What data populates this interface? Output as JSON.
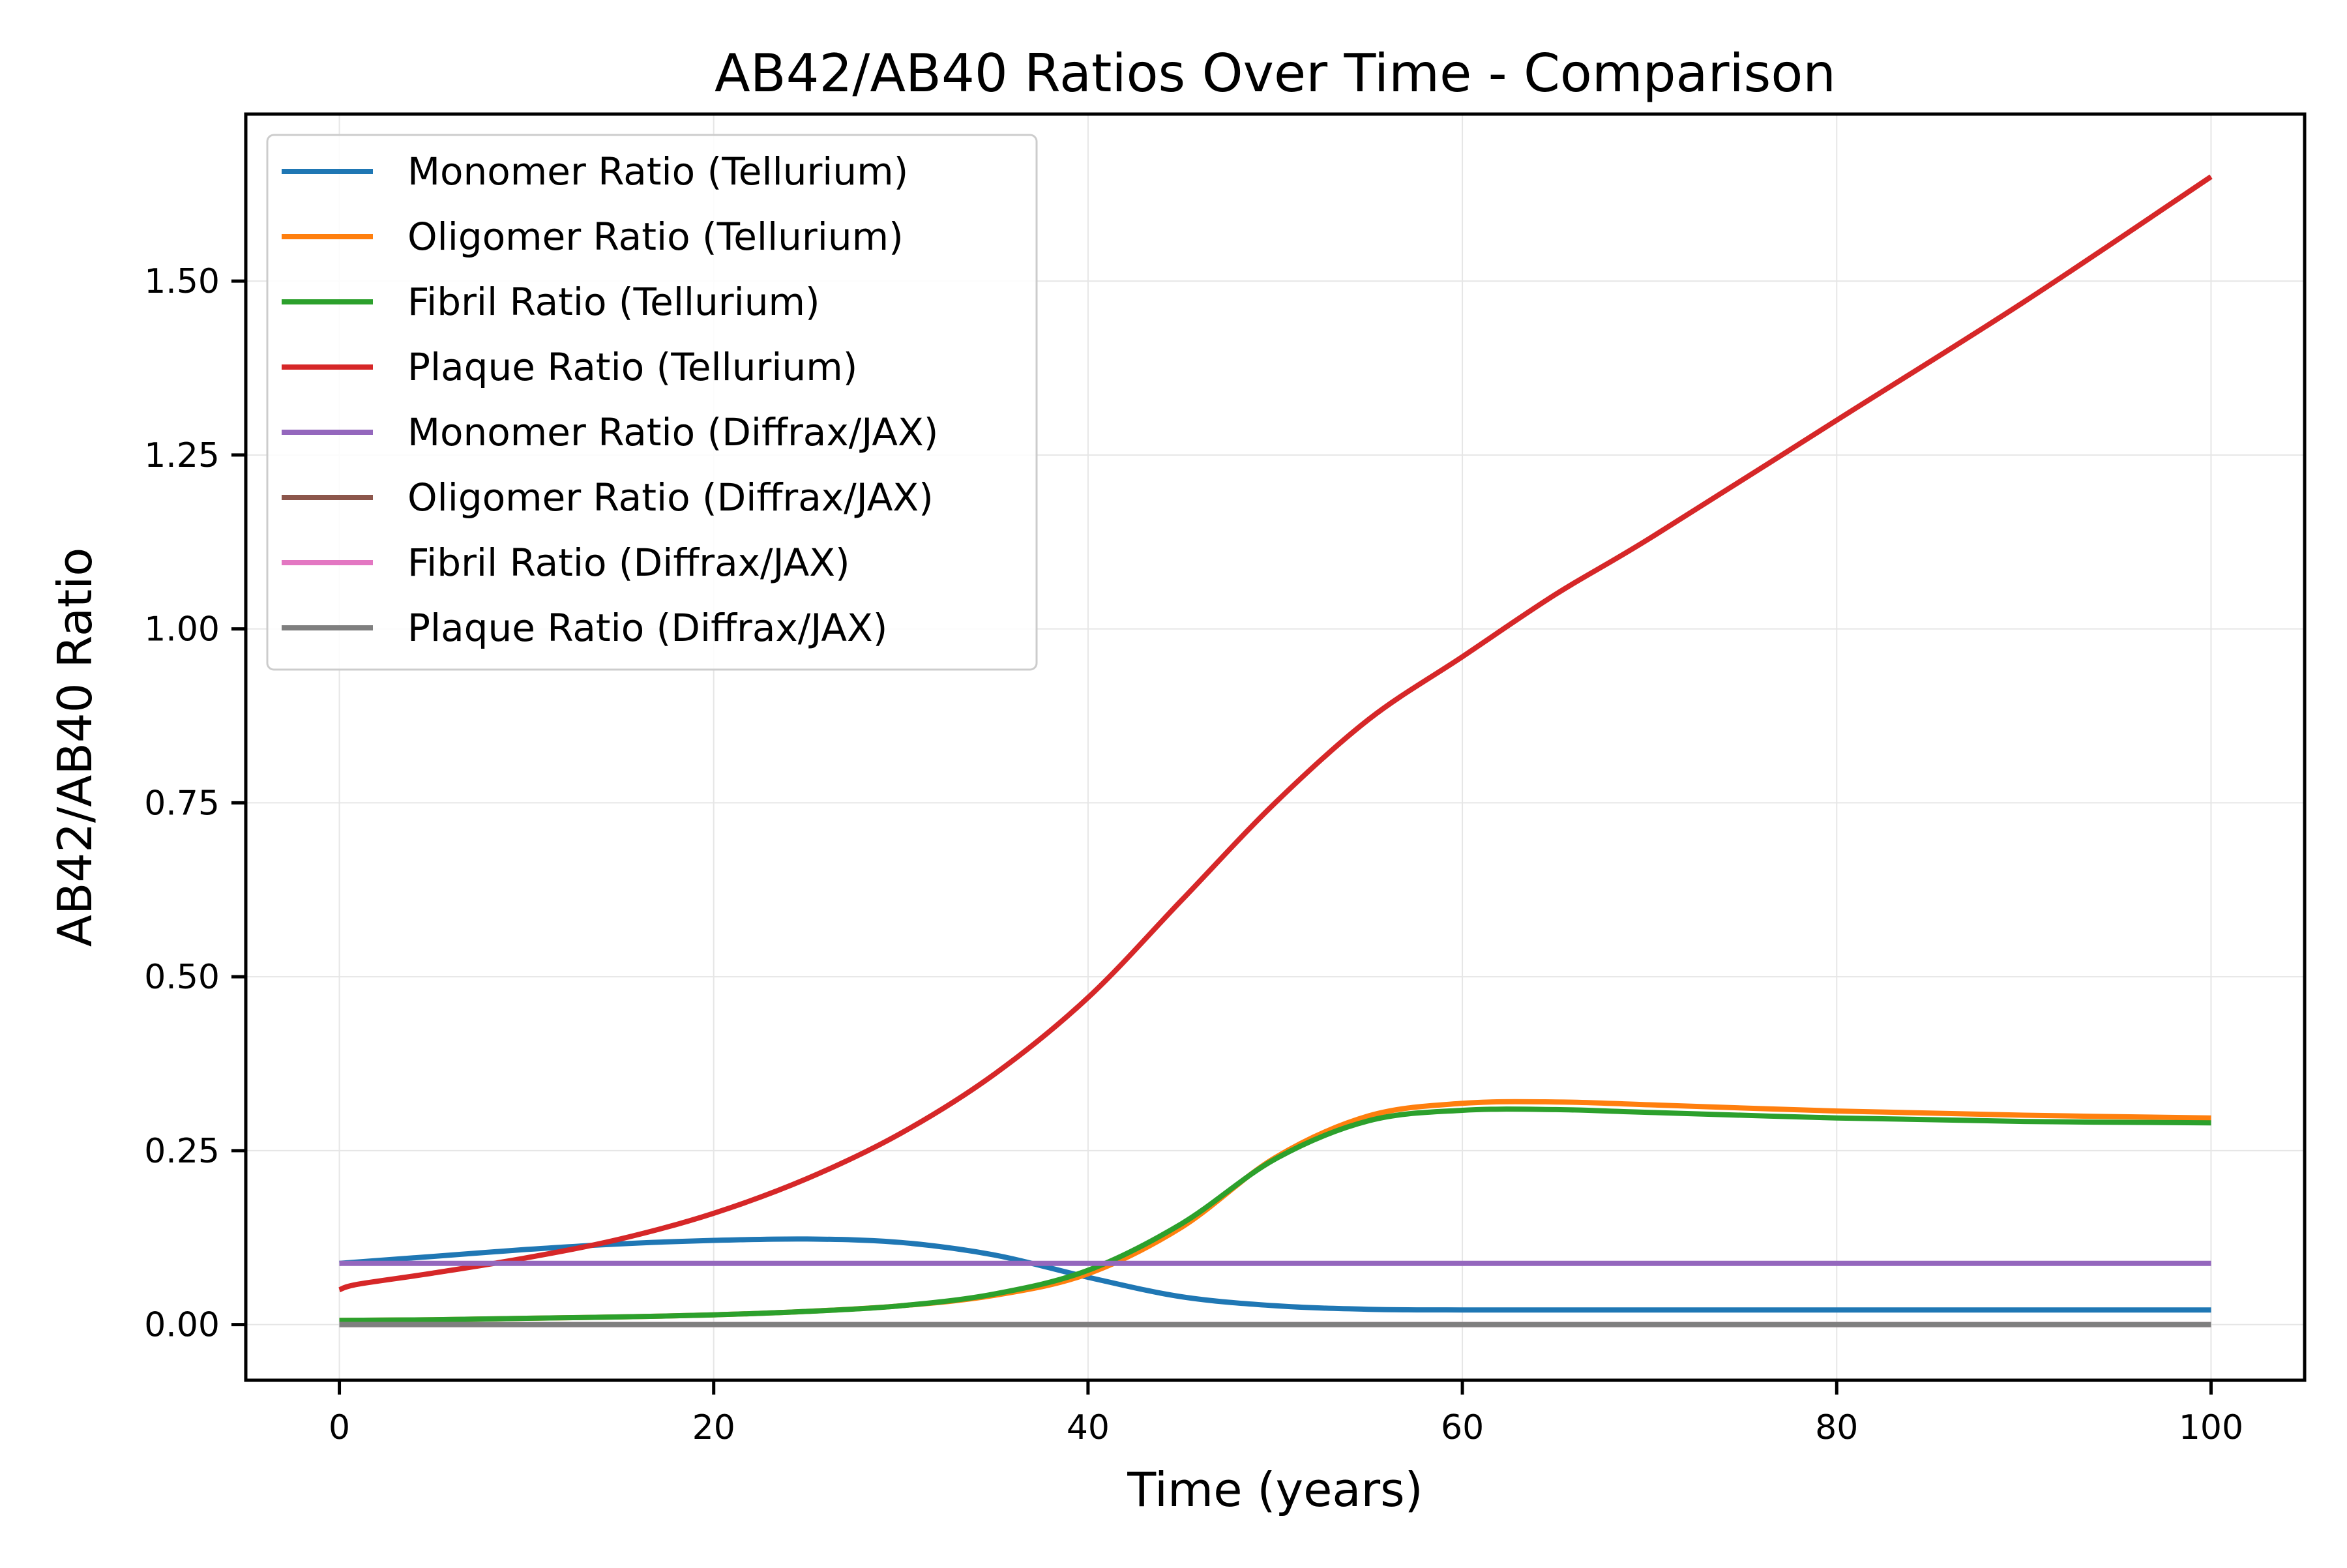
{
  "chart_data": {
    "type": "line",
    "title": "AB42/AB40 Ratios Over Time - Comparison",
    "xlabel": "Time (years)",
    "ylabel": "AB42/AB40 Ratio",
    "xlim": [
      -5,
      105
    ],
    "ylim": [
      -0.08,
      1.74
    ],
    "xticks": [
      0,
      20,
      40,
      60,
      80,
      100
    ],
    "xtick_labels": [
      "0",
      "20",
      "40",
      "60",
      "80",
      "100"
    ],
    "yticks": [
      0,
      0.25,
      0.5,
      0.75,
      1.0,
      1.25,
      1.5
    ],
    "ytick_labels": [
      "0.00",
      "0.25",
      "0.50",
      "0.75",
      "1.00",
      "1.25",
      "1.50"
    ],
    "grid": true,
    "legend_position": "upper-left",
    "series": [
      {
        "name": "Monomer Ratio (Tellurium)",
        "color": "#1f77b4",
        "x": [
          0,
          5,
          10,
          15,
          20,
          25,
          30,
          35,
          40,
          45,
          50,
          55,
          60,
          70,
          80,
          90,
          100
        ],
        "y": [
          0.088,
          0.098,
          0.108,
          0.116,
          0.121,
          0.123,
          0.118,
          0.1,
          0.068,
          0.04,
          0.027,
          0.022,
          0.021,
          0.021,
          0.021,
          0.021,
          0.021
        ]
      },
      {
        "name": "Oligomer Ratio (Tellurium)",
        "color": "#ff7f0e",
        "x": [
          0,
          5,
          10,
          15,
          20,
          25,
          30,
          35,
          40,
          45,
          50,
          55,
          60,
          65,
          70,
          80,
          90,
          100
        ],
        "y": [
          0.006,
          0.007,
          0.009,
          0.011,
          0.014,
          0.019,
          0.027,
          0.042,
          0.073,
          0.14,
          0.24,
          0.3,
          0.318,
          0.32,
          0.316,
          0.307,
          0.301,
          0.297
        ]
      },
      {
        "name": "Fibril Ratio (Tellurium)",
        "color": "#2ca02c",
        "x": [
          0,
          5,
          10,
          15,
          20,
          25,
          30,
          35,
          40,
          45,
          50,
          55,
          60,
          65,
          70,
          80,
          90,
          100
        ],
        "y": [
          0.006,
          0.007,
          0.009,
          0.011,
          0.014,
          0.019,
          0.027,
          0.044,
          0.078,
          0.145,
          0.238,
          0.293,
          0.308,
          0.309,
          0.305,
          0.297,
          0.292,
          0.29
        ]
      },
      {
        "name": "Plaque Ratio (Tellurium)",
        "color": "#d62728",
        "x": [
          0,
          1,
          5,
          10,
          15,
          20,
          25,
          30,
          35,
          40,
          45,
          50,
          55,
          60,
          65,
          70,
          80,
          90,
          100
        ],
        "y": [
          0.05,
          0.058,
          0.074,
          0.096,
          0.123,
          0.16,
          0.21,
          0.275,
          0.36,
          0.47,
          0.61,
          0.75,
          0.87,
          0.96,
          1.05,
          1.13,
          1.3,
          1.47,
          1.65
        ]
      },
      {
        "name": "Monomer Ratio (Diffrax/JAX)",
        "color": "#9467bd",
        "x": [
          0,
          100
        ],
        "y": [
          0.088,
          0.088
        ]
      },
      {
        "name": "Oligomer Ratio (Diffrax/JAX)",
        "color": "#8c564b",
        "x": [
          0,
          100
        ],
        "y": [
          0.0,
          0.0
        ]
      },
      {
        "name": "Fibril Ratio (Diffrax/JAX)",
        "color": "#e377c2",
        "x": [
          0,
          100
        ],
        "y": [
          0.0,
          0.0
        ]
      },
      {
        "name": "Plaque Ratio (Diffrax/JAX)",
        "color": "#7f7f7f",
        "x": [
          0,
          100
        ],
        "y": [
          0.0,
          0.0
        ]
      }
    ]
  }
}
